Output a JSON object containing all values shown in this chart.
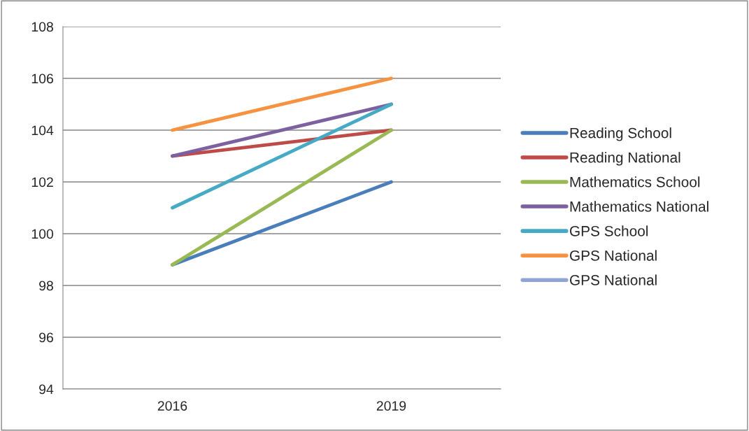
{
  "chart_data": {
    "type": "line",
    "categories": [
      "2016",
      "2019"
    ],
    "series": [
      {
        "name": "Reading School",
        "color": "#4a7ebb",
        "values": [
          98.8,
          102
        ]
      },
      {
        "name": "Reading National",
        "color": "#be4b48",
        "values": [
          103,
          104
        ]
      },
      {
        "name": "Mathematics School",
        "color": "#98b954",
        "values": [
          98.8,
          104
        ]
      },
      {
        "name": "Mathematics National",
        "color": "#7d60a0",
        "values": [
          103,
          105
        ]
      },
      {
        "name": "GPS School",
        "color": "#46aac5",
        "values": [
          101,
          105
        ]
      },
      {
        "name": "GPS National",
        "color": "#f69240",
        "values": [
          104,
          106
        ]
      },
      {
        "name": "GPS National",
        "color": "#8ea5d5",
        "values": [
          null,
          null
        ]
      }
    ],
    "ylim": [
      94,
      108
    ],
    "yticks": [
      94,
      96,
      98,
      100,
      102,
      104,
      106,
      108
    ],
    "grid": "y",
    "legend": "right",
    "marker": "none",
    "line_style": "solid"
  }
}
